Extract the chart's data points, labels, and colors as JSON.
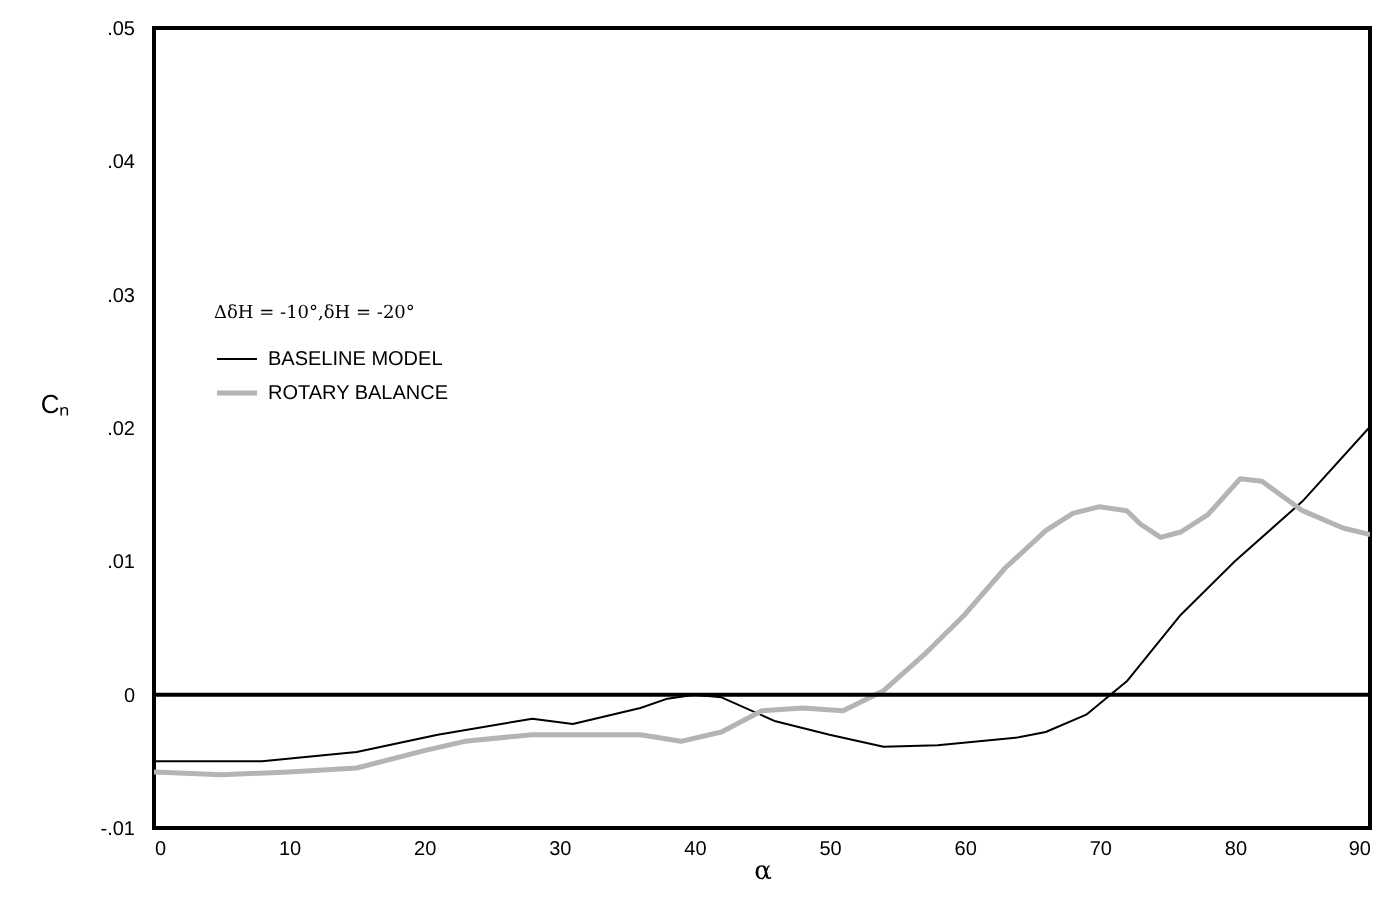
{
  "chart_data": {
    "type": "line",
    "xlabel": "α",
    "ylabel": "Cₙ",
    "legend_title": "ΔδH = -10°,δH = -20°",
    "legend": "top left",
    "grid": false,
    "series": [
      {
        "name": "BASELINE MODEL",
        "color": "#000000",
        "x": [
          0,
          8,
          15,
          21,
          28,
          31,
          36,
          38,
          40,
          42,
          46,
          50,
          54,
          58,
          64,
          66,
          69,
          72,
          76,
          80,
          85,
          90
        ],
        "values": [
          -0.005,
          -0.005,
          -0.0043,
          -0.003,
          -0.0018,
          -0.0022,
          -0.001,
          -0.0003,
          0,
          -0.0002,
          -0.002,
          -0.003,
          -0.0039,
          -0.0038,
          -0.0032,
          -0.0028,
          -0.0015,
          0.001,
          0.006,
          0.01,
          0.0145,
          0.0201
        ]
      },
      {
        "name": "ROTARY BALANCE",
        "color": "#b4b4b4",
        "x": [
          0,
          5,
          10,
          15,
          20,
          23,
          28,
          32,
          36,
          39,
          42,
          45,
          48,
          51,
          54,
          57,
          60,
          63,
          66,
          68,
          70,
          72,
          73,
          74.5,
          76,
          78,
          80.4,
          82,
          85,
          88,
          90
        ],
        "values": [
          -0.0058,
          -0.006,
          -0.0058,
          -0.0055,
          -0.0042,
          -0.0035,
          -0.003,
          -0.003,
          -0.003,
          -0.0035,
          -0.0028,
          -0.0012,
          -0.001,
          -0.0012,
          0.0003,
          0.003,
          0.006,
          0.0095,
          0.0123,
          0.0136,
          0.0141,
          0.0138,
          0.0128,
          0.0118,
          0.0122,
          0.0135,
          0.0162,
          0.016,
          0.0138,
          0.0125,
          0.012
        ]
      }
    ],
    "xlim": [
      0,
      90
    ],
    "xticks": [
      0,
      10,
      20,
      30,
      40,
      50,
      60,
      70,
      80,
      90
    ],
    "ylim": [
      -0.01,
      0.05
    ],
    "yticks": [
      {
        "value": -0.01,
        "label": "-.01"
      },
      {
        "value": 0,
        "label": "0"
      },
      {
        "value": 0.01,
        "label": ".01"
      },
      {
        "value": 0.02,
        "label": ".02"
      },
      {
        "value": 0.03,
        "label": ".03"
      },
      {
        "value": 0.04,
        "label": ".04"
      },
      {
        "value": 0.05,
        "label": ".05"
      }
    ],
    "ref_lines": [
      {
        "axis": "y",
        "value": 0,
        "color": "#000000"
      }
    ]
  }
}
